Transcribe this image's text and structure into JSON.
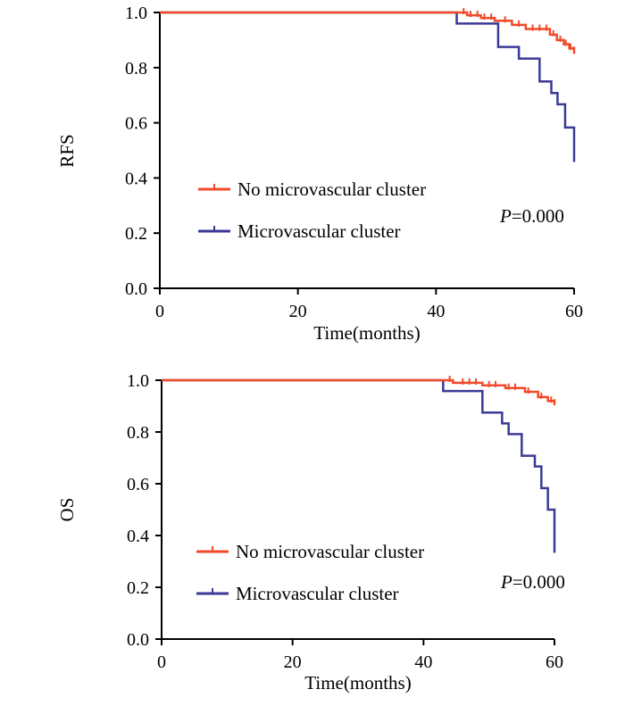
{
  "chart_data": [
    {
      "type": "line",
      "subtype": "kaplan-meier",
      "ylabel": "RFS",
      "xlabel": "Time(months)",
      "xlim": [
        0,
        60
      ],
      "ylim": [
        0,
        1.0
      ],
      "xticks": [
        "0",
        "20",
        "40",
        "60"
      ],
      "yticks": [
        "0.0",
        "0.2",
        "0.4",
        "0.6",
        "0.8",
        "1.0"
      ],
      "pvalue": {
        "label": "P",
        "value": "=0.000"
      },
      "legend": {
        "placement": "center-left"
      },
      "series": [
        {
          "name": "No microvascular cluster",
          "color": "#f04a2a",
          "steps": [
            [
              0,
              1.0
            ],
            [
              44.5,
              0.99
            ],
            [
              46.5,
              0.98
            ],
            [
              48.5,
              0.97
            ],
            [
              51,
              0.955
            ],
            [
              53,
              0.94
            ],
            [
              56.5,
              0.92
            ],
            [
              57.5,
              0.9
            ],
            [
              58.5,
              0.885
            ],
            [
              59.3,
              0.87
            ],
            [
              60,
              0.85
            ]
          ],
          "censors": [
            [
              44,
              1.0
            ],
            [
              45,
              0.99
            ],
            [
              46,
              0.99
            ],
            [
              47,
              0.98
            ],
            [
              48,
              0.98
            ],
            [
              50,
              0.97
            ],
            [
              52,
              0.955
            ],
            [
              54,
              0.94
            ],
            [
              55,
              0.94
            ],
            [
              56,
              0.94
            ],
            [
              57,
              0.92
            ],
            [
              58,
              0.9
            ],
            [
              58.8,
              0.885
            ],
            [
              59.5,
              0.87
            ],
            [
              60,
              0.86
            ]
          ]
        },
        {
          "name": "Microvascular cluster",
          "color": "#3a3a96",
          "steps": [
            [
              0,
              1.0
            ],
            [
              43,
              0.96
            ],
            [
              49,
              0.875
            ],
            [
              52,
              0.833
            ],
            [
              55,
              0.75
            ],
            [
              56.7,
              0.708
            ],
            [
              57.6,
              0.667
            ],
            [
              58.7,
              0.583
            ],
            [
              60,
              0.458
            ]
          ],
          "censors": []
        }
      ]
    },
    {
      "type": "line",
      "subtype": "kaplan-meier",
      "ylabel": "OS",
      "xlabel": "Time(months)",
      "xlim": [
        0,
        60
      ],
      "ylim": [
        0,
        1.0
      ],
      "xticks": [
        "0",
        "20",
        "40",
        "60"
      ],
      "yticks": [
        "0.0",
        "0.2",
        "0.4",
        "0.6",
        "0.8",
        "1.0"
      ],
      "pvalue": {
        "label": "P",
        "value": "=0.000"
      },
      "legend": {
        "placement": "center-left"
      },
      "series": [
        {
          "name": "No microvascular cluster",
          "color": "#f04a2a",
          "steps": [
            [
              0,
              1.0
            ],
            [
              44.5,
              0.99
            ],
            [
              49,
              0.98
            ],
            [
              52.5,
              0.97
            ],
            [
              55.5,
              0.955
            ],
            [
              57.5,
              0.935
            ],
            [
              59,
              0.92
            ],
            [
              60,
              0.905
            ]
          ],
          "censors": [
            [
              44,
              1.0
            ],
            [
              46,
              0.99
            ],
            [
              47,
              0.99
            ],
            [
              48,
              0.99
            ],
            [
              50,
              0.98
            ],
            [
              51,
              0.98
            ],
            [
              53,
              0.97
            ],
            [
              54,
              0.97
            ],
            [
              56,
              0.955
            ],
            [
              58,
              0.935
            ],
            [
              59.5,
              0.92
            ],
            [
              60,
              0.91
            ]
          ]
        },
        {
          "name": "Microvascular cluster",
          "color": "#3a3a96",
          "steps": [
            [
              0,
              1.0
            ],
            [
              43,
              0.958
            ],
            [
              49,
              0.875
            ],
            [
              52,
              0.833
            ],
            [
              53,
              0.792
            ],
            [
              55,
              0.708
            ],
            [
              57,
              0.667
            ],
            [
              58,
              0.583
            ],
            [
              59,
              0.5
            ],
            [
              60,
              0.333
            ]
          ],
          "censors": []
        }
      ]
    }
  ]
}
